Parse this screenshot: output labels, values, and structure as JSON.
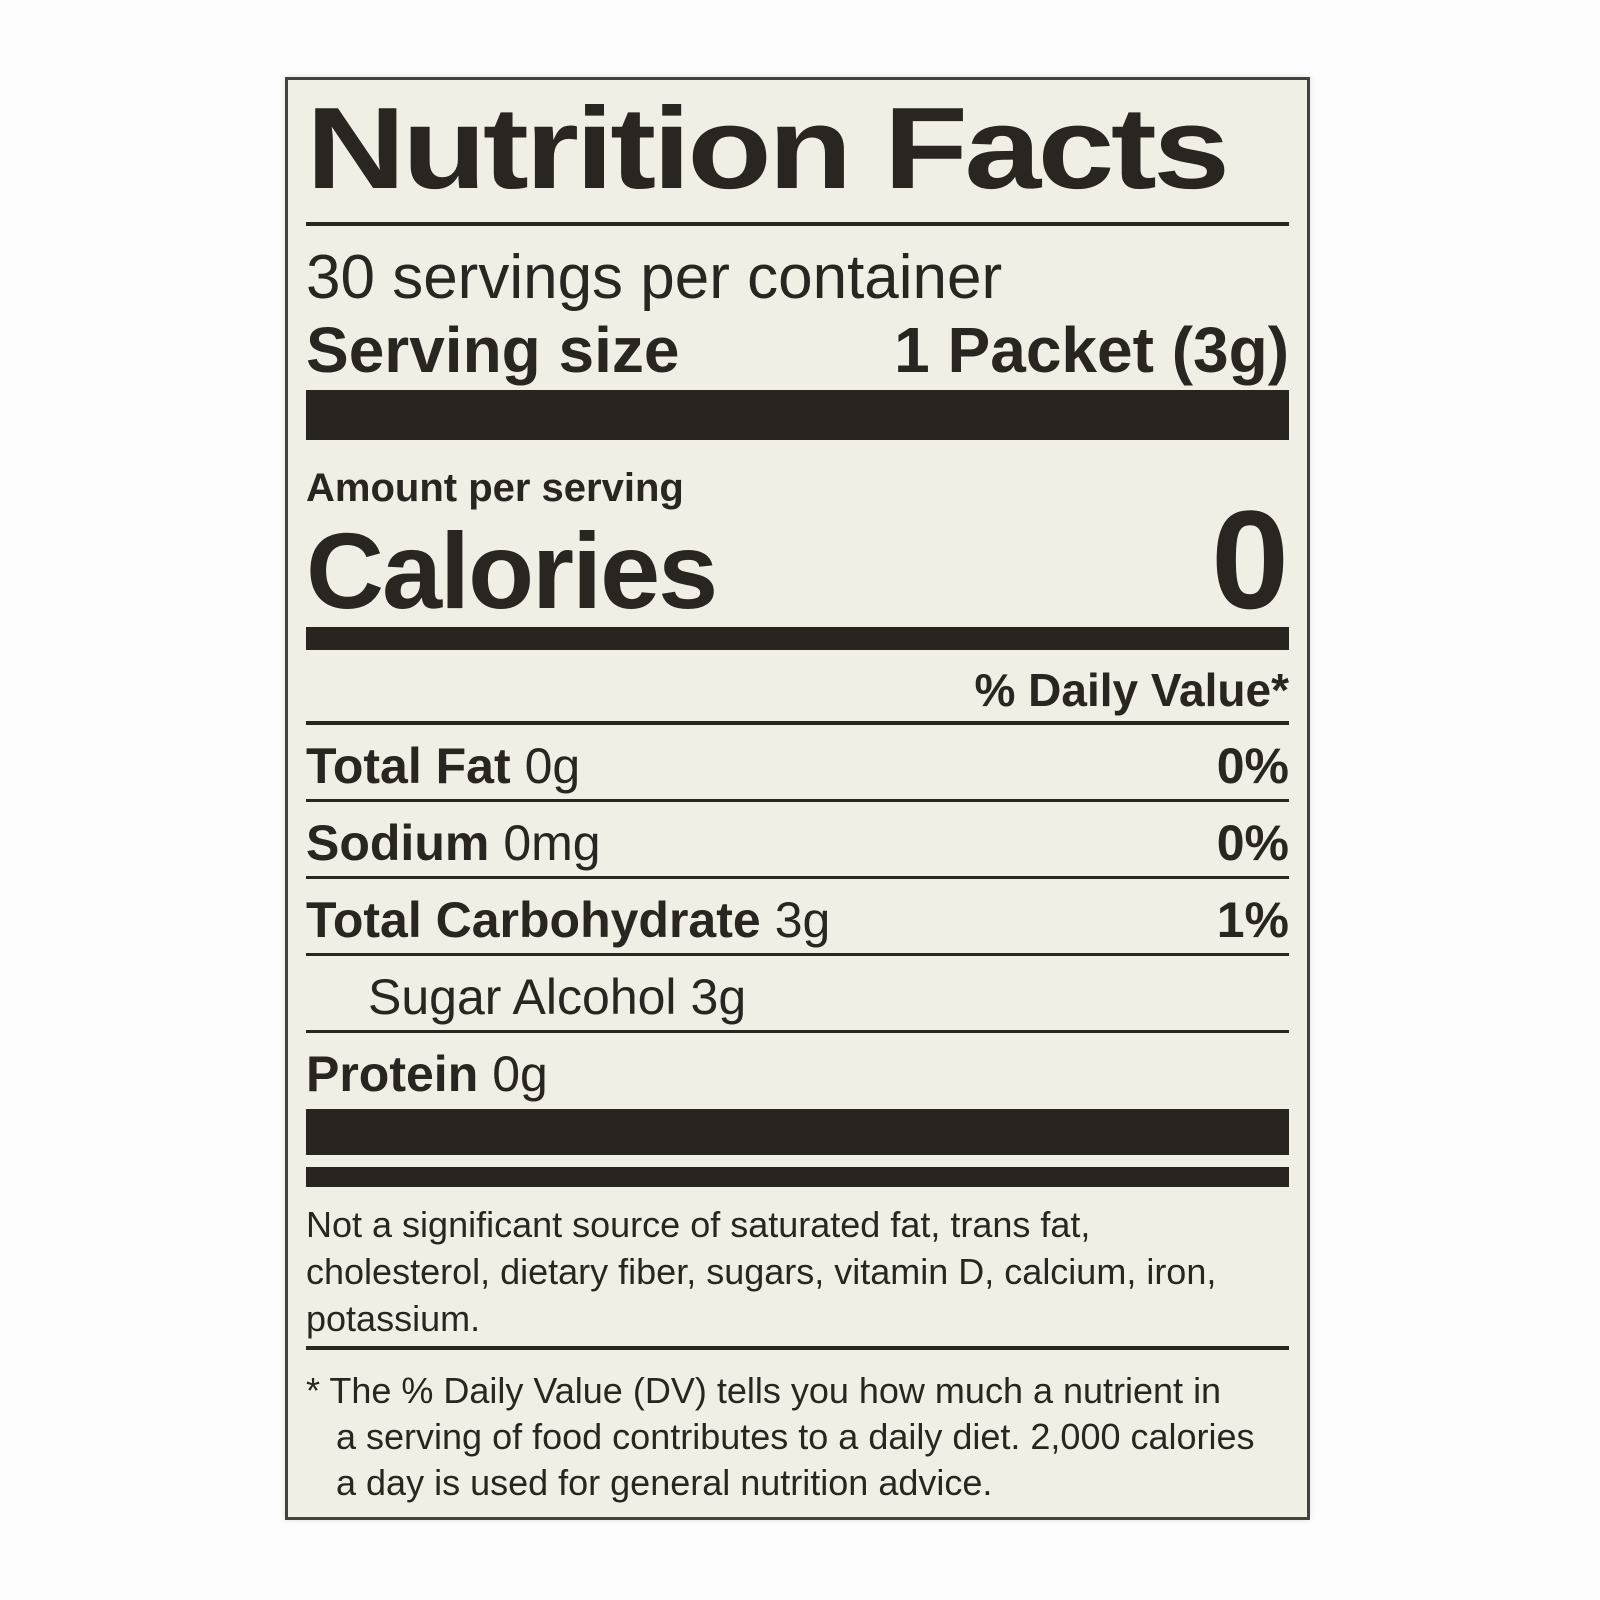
{
  "label": {
    "title": "Nutrition Facts",
    "servings_per_container": "30 servings per container",
    "serving_size_label": "Serving size",
    "serving_size_value": "1 Packet (3g)",
    "amount_per_serving": "Amount per serving",
    "calories_label": "Calories",
    "calories_value": "0",
    "daily_value_header": "% Daily Value*",
    "rows": [
      {
        "name": "Total Fat",
        "amount": "0g",
        "dv": "0%"
      },
      {
        "name": "Sodium",
        "amount": "0mg",
        "dv": "0%"
      },
      {
        "name": "Total Carbohydrate",
        "amount": "3g",
        "dv": "1%"
      },
      {
        "name": "Sugar Alcohol",
        "amount": "3g",
        "dv": ""
      },
      {
        "name": "Protein",
        "amount": "0g",
        "dv": ""
      }
    ],
    "not_significant_lines": [
      "Not a significant source of saturated fat, trans fat,",
      "cholesterol, dietary fiber, sugars, vitamin D, calcium, iron,",
      "potassium."
    ],
    "footnote_lines": [
      "* The % Daily Value (DV) tells you how much a nutrient in",
      "a serving of food contributes to a daily diet. 2,000 calories",
      "a day is used for general nutrition advice."
    ],
    "colors": {
      "label_background": "#f1efe5",
      "ink": "#2a2521",
      "border": "#45423c",
      "page_background": "#fdfdfd"
    }
  }
}
